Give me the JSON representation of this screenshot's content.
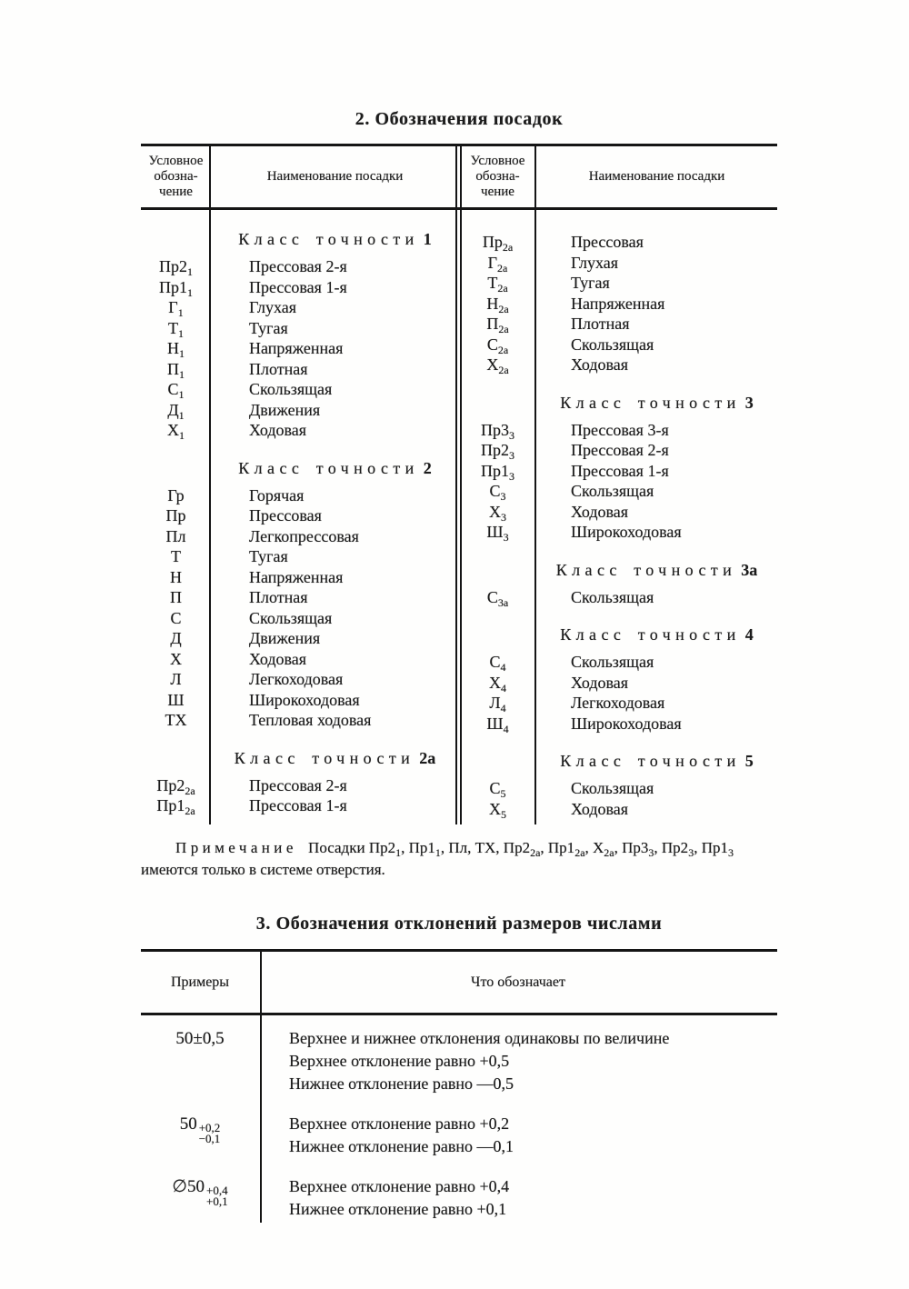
{
  "ink_color": "#1c1c1c",
  "table2": {
    "title": "2. Обозначения посадок",
    "col_headers": [
      "Условное\nобозна-\nчение",
      "Наименование посадки",
      "Условное\nобозна-\nчение",
      "Наименование посадки"
    ],
    "left_sections": [
      {
        "ht": "Класс точности",
        "hn": "1",
        "rows": [
          {
            "d": "Пр2",
            "s": "1",
            "n": "Прессовая 2-я"
          },
          {
            "d": "Пр1",
            "s": "1",
            "n": "Прессовая 1-я"
          },
          {
            "d": "Г",
            "s": "1",
            "n": "Глухая"
          },
          {
            "d": "Т",
            "s": "1",
            "n": "Тугая"
          },
          {
            "d": "Н",
            "s": "1",
            "n": "Напряженная"
          },
          {
            "d": "П",
            "s": "1",
            "n": "Плотная"
          },
          {
            "d": "С",
            "s": "1",
            "n": "Скользящая"
          },
          {
            "d": "Д",
            "s": "1",
            "n": "Движения"
          },
          {
            "d": "Х",
            "s": "1",
            "n": "Ходовая"
          }
        ]
      },
      {
        "ht": "Класс точности",
        "hn": "2",
        "rows": [
          {
            "d": "Гр",
            "s": "",
            "n": "Горячая"
          },
          {
            "d": "Пр",
            "s": "",
            "n": "Прессовая"
          },
          {
            "d": "Пл",
            "s": "",
            "n": "Легкопрессовая"
          },
          {
            "d": "Т",
            "s": "",
            "n": "Тугая"
          },
          {
            "d": "Н",
            "s": "",
            "n": "Напряженная"
          },
          {
            "d": "П",
            "s": "",
            "n": "Плотная"
          },
          {
            "d": "С",
            "s": "",
            "n": "Скользящая"
          },
          {
            "d": "Д",
            "s": "",
            "n": "Движения"
          },
          {
            "d": "Х",
            "s": "",
            "n": "Ходовая"
          },
          {
            "d": "Л",
            "s": "",
            "n": "Легкоходовая"
          },
          {
            "d": "Ш",
            "s": "",
            "n": "Широкоходовая"
          },
          {
            "d": "ТХ",
            "s": "",
            "n": "Тепловая ходовая"
          }
        ]
      },
      {
        "ht": "Класс точности",
        "hn": "2а",
        "rows": [
          {
            "d": "Пр2",
            "s": "2а",
            "n": "Прессовая 2-я"
          },
          {
            "d": "Пр1",
            "s": "2а",
            "n": "Прессовая 1-я"
          }
        ]
      }
    ],
    "right_sections": [
      {
        "ht": "",
        "hn": "",
        "rows": [
          {
            "d": "Пр",
            "s": "2а",
            "n": "Прессовая"
          },
          {
            "d": "Г",
            "s": "2а",
            "n": "Глухая"
          },
          {
            "d": "Т",
            "s": "2а",
            "n": "Тугая"
          },
          {
            "d": "Н",
            "s": "2а",
            "n": "Напряженная"
          },
          {
            "d": "П",
            "s": "2а",
            "n": "Плотная"
          },
          {
            "d": "С",
            "s": "2а",
            "n": "Скользящая"
          },
          {
            "d": "Х",
            "s": "2а",
            "n": "Ходовая"
          }
        ]
      },
      {
        "ht": "Класс точности",
        "hn": "3",
        "rows": [
          {
            "d": "Пр3",
            "s": "3",
            "n": "Прессовая 3-я"
          },
          {
            "d": "Пр2",
            "s": "3",
            "n": "Прессовая 2-я"
          },
          {
            "d": "Пр1",
            "s": "3",
            "n": "Прессовая 1-я"
          },
          {
            "d": "С",
            "s": "3",
            "n": "Скользящая"
          },
          {
            "d": "Х",
            "s": "3",
            "n": "Ходовая"
          },
          {
            "d": "Ш",
            "s": "3",
            "n": "Широкоходовая"
          }
        ]
      },
      {
        "ht": "Класс точности",
        "hn": "3а",
        "rows": [
          {
            "d": "С",
            "s": "3а",
            "n": "Скользящая"
          }
        ]
      },
      {
        "ht": "Класс точности",
        "hn": "4",
        "rows": [
          {
            "d": "С",
            "s": "4",
            "n": "Скользящая"
          },
          {
            "d": "Х",
            "s": "4",
            "n": "Ходовая"
          },
          {
            "d": "Л",
            "s": "4",
            "n": "Легкоходовая"
          },
          {
            "d": "Ш",
            "s": "4",
            "n": "Широкоходовая"
          }
        ]
      },
      {
        "ht": "Класс точности",
        "hn": "5",
        "rows": [
          {
            "d": "С",
            "s": "5",
            "n": "Скользящая"
          },
          {
            "d": "Х",
            "s": "5",
            "n": "Ходовая"
          }
        ]
      }
    ]
  },
  "note": {
    "lead": "Примечание",
    "segments": [
      {
        "t": " Посадки "
      },
      {
        "t": "Пр2",
        "s": "1"
      },
      {
        "t": ", "
      },
      {
        "t": "Пр1",
        "s": "1"
      },
      {
        "t": ", Пл, ТХ, "
      },
      {
        "t": "Пр2",
        "s": "2а"
      },
      {
        "t": ", "
      },
      {
        "t": "Пр1",
        "s": "2а"
      },
      {
        "t": ", "
      },
      {
        "t": "Х",
        "s": "2а"
      },
      {
        "t": ", "
      },
      {
        "t": "Пр3",
        "s": "3"
      },
      {
        "t": ", "
      },
      {
        "t": "Пр2",
        "s": "3"
      },
      {
        "t": ", "
      },
      {
        "t": "Пр1",
        "s": "3"
      },
      {
        "t": " имеются только в системе отверстия."
      }
    ]
  },
  "table3": {
    "title": "3. Обозначения отклонений размеров числами",
    "col_headers": [
      "Примеры",
      "Что обозначает"
    ],
    "rows": [
      {
        "example": {
          "prefix": "",
          "base": "50",
          "inline": "±0,5",
          "top": "",
          "bottom": ""
        },
        "lines": [
          "Верхнее и нижнее отклонения одинаковы по величине",
          "Верхнее отклонение равно +0,5",
          "Нижнее отклонение равно —0,5"
        ]
      },
      {
        "example": {
          "prefix": "",
          "base": "50",
          "inline": "",
          "top": "+0,2",
          "bottom": "−0,1"
        },
        "lines": [
          "Верхнее отклонение равно +0,2",
          "Нижнее отклонение равно —0,1"
        ]
      },
      {
        "example": {
          "prefix": "∅",
          "base": "50",
          "inline": "",
          "top": "+0,4",
          "bottom": "+0,1"
        },
        "lines": [
          "Верхнее отклонение равно +0,4",
          "Нижнее отклонение равно +0,1"
        ]
      }
    ]
  }
}
